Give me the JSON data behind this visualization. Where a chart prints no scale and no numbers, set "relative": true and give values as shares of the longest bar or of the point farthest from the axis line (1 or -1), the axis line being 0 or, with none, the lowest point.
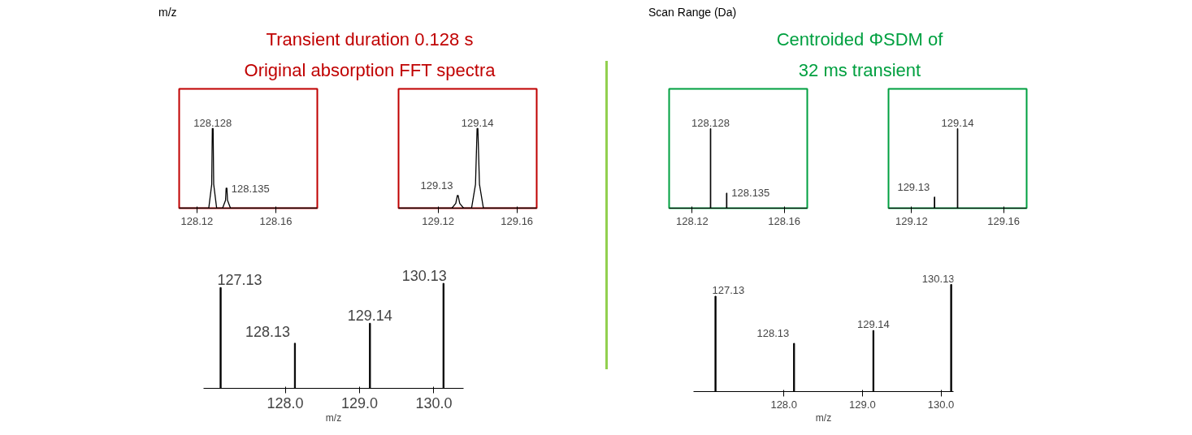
{
  "chart_data": [
    {
      "type": "other",
      "title": "Transient duration 0.128 s",
      "subtitle": "Original absorption FFT spectra",
      "annotations": [
        "m/z"
      ]
    },
    {
      "type": "line",
      "relative": true,
      "series": [
        {
          "color": "#000000",
          "x": [
            128.111,
            128.126,
            128.1275,
            128.1278,
            128.1282,
            128.1285,
            128.13,
            128.133,
            128.1345,
            128.1348,
            128.1352,
            128.1355,
            128.137,
            128.181
          ],
          "values": [
            0,
            0,
            0.3,
            1,
            1,
            0.3,
            0,
            0,
            0.1,
            0.25,
            0.25,
            0.1,
            0,
            0
          ]
        }
      ],
      "annotations": [
        {
          "text": "128.128",
          "x": 128.128,
          "y": 1
        },
        {
          "text": "128.135",
          "x": 128.135,
          "y": 0.25
        }
      ],
      "xlim": [
        128.111,
        128.181
      ],
      "xticks": [
        128.12,
        128.16
      ]
    },
    {
      "type": "line",
      "relative": true,
      "series": [
        {
          "color": "#000000",
          "x": [
            129.1,
            129.127,
            129.129,
            129.1298,
            129.1302,
            129.131,
            129.133,
            129.137,
            129.139,
            129.1398,
            129.1402,
            129.141,
            129.143,
            129.17
          ],
          "values": [
            0,
            0,
            0.06,
            0.16,
            0.16,
            0.06,
            0,
            0,
            0.3,
            1,
            1,
            0.3,
            0,
            0
          ]
        }
      ],
      "annotations": [
        {
          "text": "129.13",
          "x": 129.13,
          "y": 0.16
        },
        {
          "text": "129.14",
          "x": 129.14,
          "y": 1
        }
      ],
      "xlim": [
        129.1,
        129.17
      ],
      "xticks": [
        129.12,
        129.16
      ]
    },
    {
      "type": "bar",
      "xlabel": "m/z",
      "relative": true,
      "x": [
        127.13,
        128.13,
        129.14,
        130.13
      ],
      "values": [
        0.96,
        0.43,
        0.62,
        1
      ],
      "annotations": [
        {
          "text": "127.13",
          "x": 127.13,
          "y": 0.96
        },
        {
          "text": "128.13",
          "x": 128.13,
          "y": 0.43
        },
        {
          "text": "129.14",
          "x": 129.14,
          "y": 0.62
        },
        {
          "text": "130.13",
          "x": 130.13,
          "y": 1
        }
      ],
      "color": "#000000",
      "xlim": [
        126.9,
        130.4
      ],
      "xticks": [
        {
          "value": 128.0,
          "label": "128.0"
        },
        {
          "value": 129.0,
          "label": "129.0"
        },
        {
          "value": 130.0,
          "label": "130.0"
        }
      ]
    },
    {
      "type": "other",
      "title": "Centroided ΦSDM of",
      "subtitle": "32 ms transient",
      "annotations": [
        "Scan Range (Da)"
      ]
    },
    {
      "type": "bar",
      "relative": true,
      "x": [
        128.128,
        128.135
      ],
      "values": [
        1,
        0.19
      ],
      "annotations": [
        {
          "text": "128.128",
          "x": 128.128,
          "y": 1
        },
        {
          "text": "128.135",
          "x": 128.135,
          "y": 0.19
        }
      ],
      "color": "#000000",
      "xlim": [
        128.11,
        128.17
      ],
      "xticks": [
        128.12,
        128.16
      ]
    },
    {
      "type": "bar",
      "relative": true,
      "x": [
        129.13,
        129.14
      ],
      "values": [
        0.14,
        1
      ],
      "annotations": [
        {
          "text": "129.13",
          "x": 129.13,
          "y": 0.14
        },
        {
          "text": "129.14",
          "x": 129.14,
          "y": 1
        }
      ],
      "color": "#000000",
      "xlim": [
        129.11,
        129.17
      ],
      "xticks": [
        129.12,
        129.16
      ]
    },
    {
      "type": "bar",
      "xlabel": "m/z",
      "relative": true,
      "x": [
        127.13,
        128.13,
        129.14,
        130.13
      ],
      "values": [
        0.89,
        0.45,
        0.57,
        1
      ],
      "annotations": [
        {
          "text": "127.13",
          "x": 127.13,
          "y": 0.89
        },
        {
          "text": "128.13",
          "x": 128.13,
          "y": 0.45
        },
        {
          "text": "129.14",
          "x": 129.14,
          "y": 0.57
        },
        {
          "text": "130.13",
          "x": 130.13,
          "y": 1
        }
      ],
      "color": "#000000",
      "xlim": [
        126.85,
        130.16
      ],
      "xticks": [
        {
          "value": 128.0,
          "label": "128.0"
        },
        {
          "value": 129.0,
          "label": "129.0"
        },
        {
          "value": 130.0,
          "label": "130.0"
        }
      ]
    }
  ]
}
